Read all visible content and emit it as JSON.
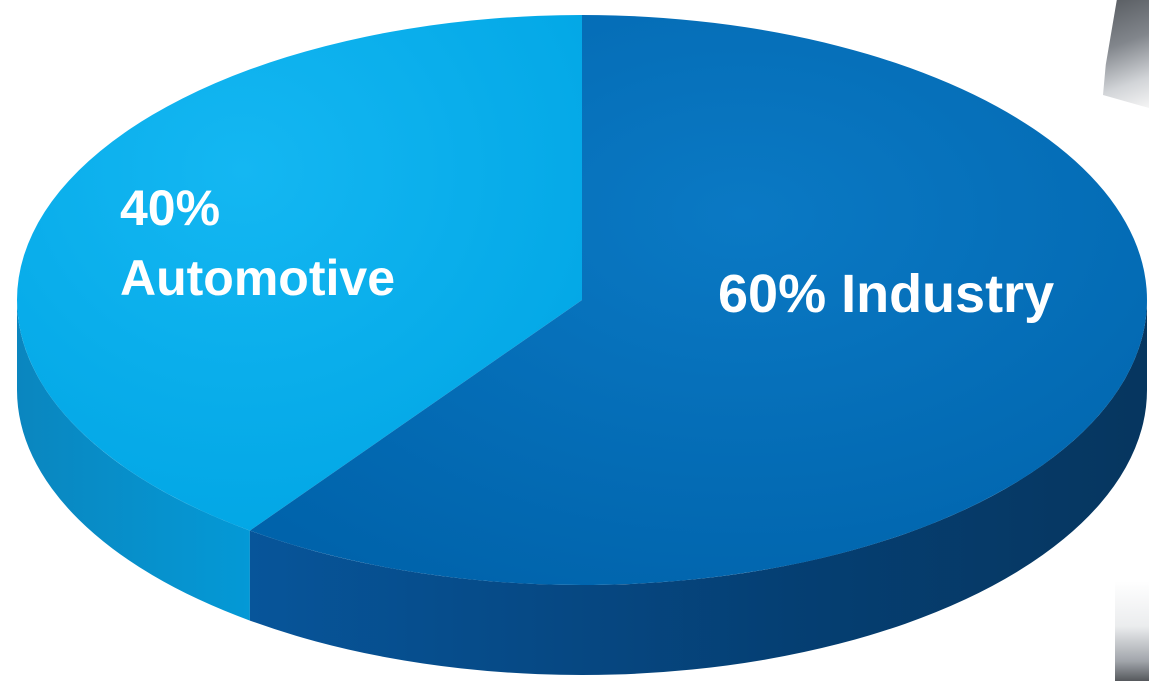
{
  "chart_data": {
    "type": "pie",
    "title": "",
    "style": "3d",
    "slices": [
      {
        "name": "Automotive",
        "value": 40,
        "label_line1": "40%",
        "label_line2": "Automotive",
        "color": "#00aeef",
        "side_color": "#0090c8"
      },
      {
        "name": "Industry",
        "value": 60,
        "label_line1": "60% Industry",
        "label_line2": "",
        "color": "#0072bc",
        "side_color": "#054a80"
      }
    ],
    "legend": "none"
  },
  "decor": {
    "top_right": "laptop-photo",
    "bottom_right": "machine-photo"
  }
}
